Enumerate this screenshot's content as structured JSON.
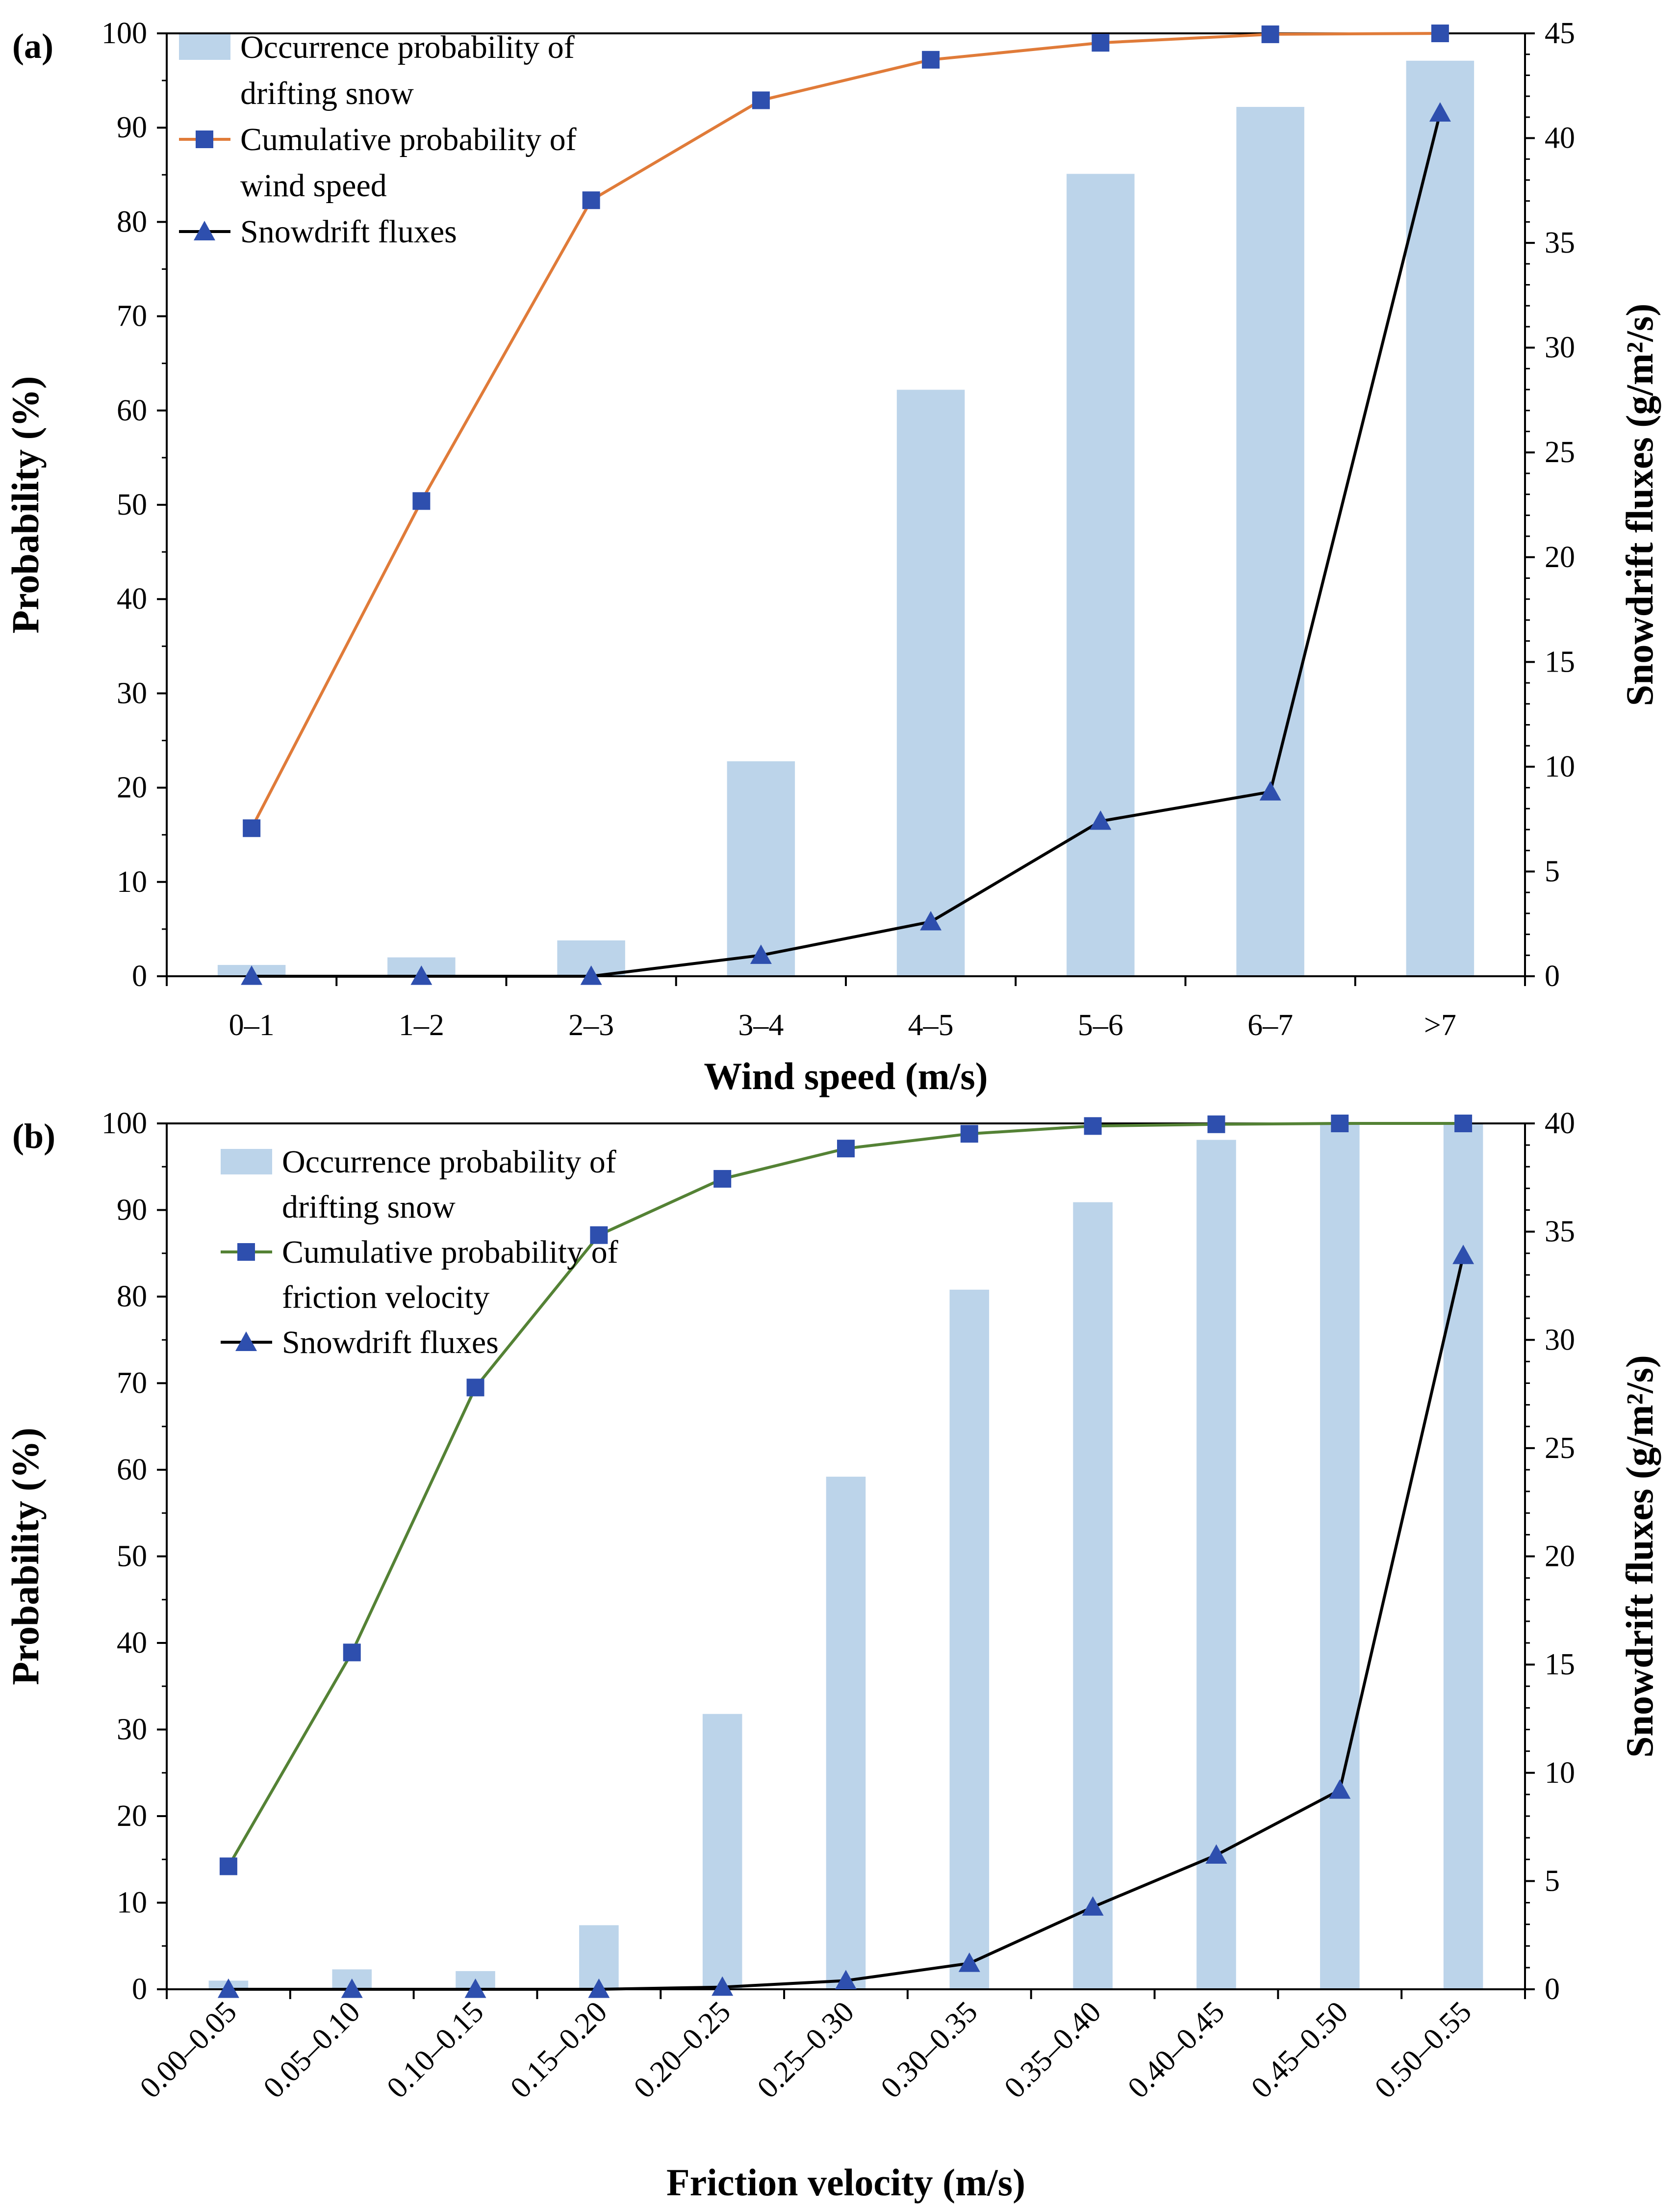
{
  "colors": {
    "bar": "#bcd4ea",
    "cumulative_a": "#e07b39",
    "cumulative_b": "#548235",
    "marker": "#2e4fae",
    "flux_line": "#000000",
    "axis": "#000000"
  },
  "chart_data": [
    {
      "type": "bar+line",
      "panel_label": "(a)",
      "xlabel": "Wind speed (m/s)",
      "ylabel": "Probability (%)",
      "y2label": "Snowdrift fluxes (g/m²/s)",
      "categories": [
        "0–1",
        "1–2",
        "2–3",
        "3–4",
        "4–5",
        "5–6",
        "6–7",
        ">7"
      ],
      "ylim": [
        0,
        100
      ],
      "yticks": [
        "0",
        "10",
        "20",
        "30",
        "40",
        "50",
        "60",
        "70",
        "80",
        "90",
        "100"
      ],
      "y2lim": [
        0,
        45
      ],
      "y2ticks": [
        "0",
        "5",
        "10",
        "15",
        "20",
        "25",
        "30",
        "35",
        "40",
        "45"
      ],
      "legend_position": "top-left",
      "series": [
        {
          "name": "Occurrence probability of drifting snow",
          "legend_lines": [
            "Occurrence probability of",
            "drifting snow"
          ],
          "kind": "bar",
          "axis": "left",
          "values": [
            1.2,
            2.0,
            3.8,
            22.8,
            62.2,
            85.1,
            92.2,
            97.1
          ]
        },
        {
          "name": "Cumulative probability of wind speed",
          "legend_lines": [
            "Cumulative probability of",
            "wind speed"
          ],
          "kind": "line-square",
          "axis": "left",
          "values": [
            15.7,
            50.4,
            82.3,
            92.9,
            97.2,
            99.0,
            99.9,
            100.0
          ]
        },
        {
          "name": "Snowdrift fluxes",
          "legend_lines": [
            "Snowdrift fluxes"
          ],
          "kind": "line-triangle",
          "axis": "right",
          "values": [
            0.0,
            0.0,
            0.0,
            1.0,
            2.6,
            7.4,
            8.8,
            41.2
          ]
        }
      ]
    },
    {
      "type": "bar+line",
      "panel_label": "(b)",
      "xlabel": "Friction velocity (m/s)",
      "ylabel": "Probability (%)",
      "y2label": "Snowdrift fluxes (g/m²/s)",
      "categories": [
        "0.00–0.05",
        "0.05–0.10",
        "0.10–0.15",
        "0.15–0.20",
        "0.20–0.25",
        "0.25–0.30",
        "0.30–0.35",
        "0.35–0.40",
        "0.40–0.45",
        "0.45–0.50",
        "0.50–0.55"
      ],
      "ylim": [
        0,
        100
      ],
      "yticks": [
        "0",
        "10",
        "20",
        "30",
        "40",
        "50",
        "60",
        "70",
        "80",
        "90",
        "100"
      ],
      "y2lim": [
        0,
        40
      ],
      "y2ticks": [
        "0",
        "5",
        "10",
        "15",
        "20",
        "25",
        "30",
        "35",
        "40"
      ],
      "legend_position": "top-left",
      "series": [
        {
          "name": "Occurrence probability of drifting snow",
          "legend_lines": [
            "Occurrence probability of",
            "drifting snow"
          ],
          "kind": "bar",
          "axis": "left",
          "values": [
            1.0,
            2.3,
            2.1,
            7.4,
            31.8,
            59.2,
            80.8,
            90.9,
            98.1,
            100.0,
            100.0
          ]
        },
        {
          "name": "Cumulative probability of friction velocity",
          "legend_lines": [
            "Cumulative probability of",
            "friction velocity"
          ],
          "kind": "line-square",
          "axis": "left",
          "values": [
            14.2,
            38.9,
            69.5,
            87.1,
            93.6,
            97.1,
            98.8,
            99.7,
            99.9,
            100.0,
            100.0
          ]
        },
        {
          "name": "Snowdrift fluxes",
          "legend_lines": [
            "Snowdrift fluxes"
          ],
          "kind": "line-triangle",
          "axis": "right",
          "values": [
            0.0,
            0.0,
            0.0,
            0.0,
            0.1,
            0.4,
            1.2,
            3.8,
            6.2,
            9.2,
            33.9
          ]
        }
      ]
    }
  ]
}
